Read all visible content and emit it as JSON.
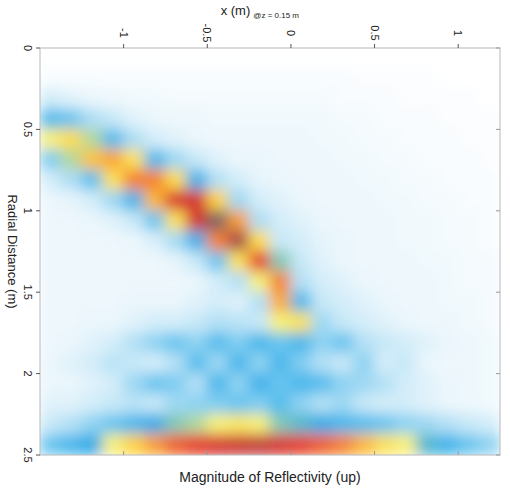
{
  "chart_data": {
    "type": "heatmap",
    "title": "Magnitude of Reflectivity (up)",
    "xlabel": "x (m)",
    "ylabel": "Radial Distance (m)",
    "annotations": [
      "@z = 0.15 m"
    ],
    "xlim": [
      -1.5,
      1.25
    ],
    "ylim": [
      0,
      2.5
    ],
    "xticks": [
      -1,
      -0.5,
      0,
      0.5,
      1
    ],
    "yticks": [
      0,
      0.5,
      1,
      1.5,
      2,
      2.5
    ],
    "x": [
      -1.4375,
      -1.3125,
      -1.1875,
      -1.0625,
      -0.9375,
      -0.8125,
      -0.6875,
      -0.5625,
      -0.4375,
      -0.3125,
      -0.1875,
      -0.0625,
      0.0625,
      0.1875,
      0.3125,
      0.4375,
      0.5625,
      0.6875,
      0.8125,
      0.9375,
      1.0625,
      1.1875
    ],
    "y": [
      0.0625,
      0.1875,
      0.3125,
      0.4375,
      0.5625,
      0.6875,
      0.8125,
      0.9375,
      1.0625,
      1.1875,
      1.3125,
      1.4375,
      1.5625,
      1.6875,
      1.8125,
      1.9375,
      2.0625,
      2.1875,
      2.3125,
      2.4375
    ],
    "values": [
      [
        0,
        0.02,
        0.1,
        0.29,
        0.45,
        0.22,
        0.1,
        0.06,
        0.05,
        0.05,
        0.05,
        0.05,
        0.05,
        0.05,
        0.05,
        0.06,
        0.06,
        0.08,
        0.12,
        0.25
      ],
      [
        0,
        0.02,
        0.08,
        0.25,
        0.52,
        0.42,
        0.16,
        0.07,
        0.05,
        0.05,
        0.05,
        0.05,
        0.05,
        0.05,
        0.06,
        0.08,
        0.06,
        0.08,
        0.15,
        0.3
      ],
      [
        0,
        0.02,
        0.06,
        0.16,
        0.42,
        0.58,
        0.27,
        0.1,
        0.06,
        0.05,
        0.05,
        0.05,
        0.05,
        0.06,
        0.08,
        0.1,
        0.08,
        0.1,
        0.2,
        0.35
      ],
      [
        0,
        0.02,
        0.05,
        0.12,
        0.29,
        0.63,
        0.5,
        0.18,
        0.08,
        0.05,
        0.05,
        0.05,
        0.05,
        0.06,
        0.1,
        0.14,
        0.1,
        0.12,
        0.25,
        0.45
      ],
      [
        0,
        0.02,
        0.04,
        0.08,
        0.16,
        0.5,
        0.7,
        0.32,
        0.12,
        0.06,
        0.05,
        0.05,
        0.06,
        0.08,
        0.15,
        0.12,
        0.18,
        0.14,
        0.3,
        0.55
      ],
      [
        0,
        0.02,
        0.04,
        0.06,
        0.1,
        0.3,
        0.7,
        0.6,
        0.25,
        0.09,
        0.05,
        0.05,
        0.06,
        0.1,
        0.2,
        0.1,
        0.25,
        0.12,
        0.35,
        0.65
      ],
      [
        0,
        0.02,
        0.03,
        0.05,
        0.08,
        0.18,
        0.52,
        0.85,
        0.5,
        0.17,
        0.07,
        0.05,
        0.06,
        0.1,
        0.25,
        0.15,
        0.22,
        0.18,
        0.4,
        0.75
      ],
      [
        0,
        0.02,
        0.03,
        0.05,
        0.06,
        0.12,
        0.33,
        0.86,
        0.86,
        0.33,
        0.12,
        0.06,
        0.08,
        0.12,
        0.2,
        0.28,
        0.15,
        0.2,
        0.42,
        0.8
      ],
      [
        0,
        0.02,
        0.03,
        0.04,
        0.05,
        0.08,
        0.15,
        0.55,
        1.0,
        0.7,
        0.25,
        0.1,
        0.1,
        0.15,
        0.28,
        0.18,
        0.3,
        0.22,
        0.45,
        0.85
      ],
      [
        0,
        0.02,
        0.03,
        0.04,
        0.05,
        0.06,
        0.1,
        0.18,
        0.65,
        0.95,
        0.5,
        0.15,
        0.08,
        0.14,
        0.22,
        0.3,
        0.2,
        0.25,
        0.48,
        0.88
      ],
      [
        0,
        0.02,
        0.03,
        0.04,
        0.05,
        0.06,
        0.07,
        0.1,
        0.16,
        0.52,
        0.8,
        0.45,
        0.15,
        0.12,
        0.3,
        0.2,
        0.32,
        0.22,
        0.45,
        0.9
      ],
      [
        0,
        0.02,
        0.03,
        0.04,
        0.05,
        0.05,
        0.06,
        0.08,
        0.1,
        0.12,
        0.4,
        0.7,
        0.62,
        0.45,
        0.25,
        0.3,
        0.25,
        0.28,
        0.4,
        0.85
      ],
      [
        0,
        0.02,
        0.03,
        0.04,
        0.05,
        0.05,
        0.05,
        0.06,
        0.08,
        0.1,
        0.12,
        0.15,
        0.3,
        0.5,
        0.3,
        0.22,
        0.3,
        0.2,
        0.38,
        0.8
      ],
      [
        0,
        0.02,
        0.03,
        0.04,
        0.04,
        0.05,
        0.05,
        0.05,
        0.06,
        0.07,
        0.08,
        0.1,
        0.12,
        0.18,
        0.2,
        0.15,
        0.28,
        0.15,
        0.35,
        0.75
      ],
      [
        0,
        0.02,
        0.02,
        0.03,
        0.04,
        0.04,
        0.05,
        0.05,
        0.05,
        0.06,
        0.06,
        0.08,
        0.1,
        0.12,
        0.25,
        0.12,
        0.2,
        0.18,
        0.3,
        0.7
      ],
      [
        0,
        0.01,
        0.02,
        0.03,
        0.03,
        0.04,
        0.04,
        0.05,
        0.05,
        0.05,
        0.05,
        0.06,
        0.08,
        0.1,
        0.15,
        0.2,
        0.18,
        0.12,
        0.28,
        0.6
      ],
      [
        0,
        0.01,
        0.02,
        0.02,
        0.03,
        0.03,
        0.04,
        0.04,
        0.05,
        0.05,
        0.05,
        0.05,
        0.06,
        0.08,
        0.12,
        0.1,
        0.15,
        0.1,
        0.25,
        0.5
      ],
      [
        0,
        0.01,
        0.01,
        0.02,
        0.02,
        0.03,
        0.03,
        0.04,
        0.04,
        0.04,
        0.05,
        0.05,
        0.05,
        0.06,
        0.1,
        0.12,
        0.1,
        0.1,
        0.2,
        0.45
      ],
      [
        0,
        0.01,
        0.01,
        0.02,
        0.02,
        0.02,
        0.03,
        0.03,
        0.04,
        0.04,
        0.04,
        0.05,
        0.05,
        0.05,
        0.08,
        0.06,
        0.08,
        0.08,
        0.18,
        0.38
      ],
      [
        0,
        0,
        0.01,
        0.01,
        0.02,
        0.02,
        0.02,
        0.03,
        0.03,
        0.03,
        0.04,
        0.04,
        0.04,
        0.05,
        0.06,
        0.05,
        0.06,
        0.06,
        0.15,
        0.32
      ],
      [
        0,
        0,
        0.01,
        0.01,
        0.01,
        0.02,
        0.02,
        0.02,
        0.03,
        0.03,
        0.03,
        0.03,
        0.04,
        0.04,
        0.05,
        0.05,
        0.05,
        0.05,
        0.12,
        0.25
      ],
      [
        0,
        0,
        0,
        0.01,
        0.01,
        0.01,
        0.02,
        0.02,
        0.02,
        0.02,
        0.03,
        0.03,
        0.03,
        0.03,
        0.04,
        0.04,
        0.04,
        0.04,
        0.1,
        0.2
      ]
    ]
  }
}
